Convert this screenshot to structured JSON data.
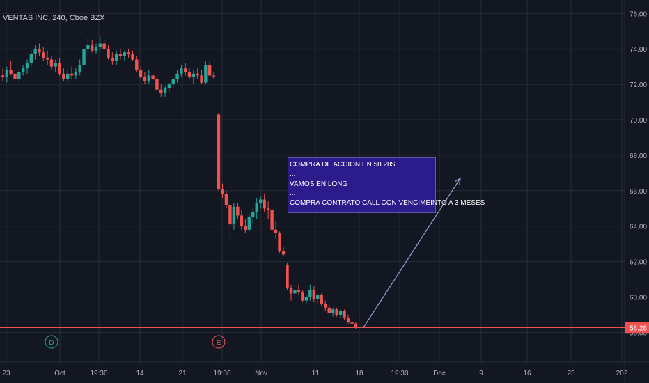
{
  "header": {
    "title": "VENTAS INC, 240, Cboe BZX"
  },
  "annotation": {
    "lines": [
      "COMPRA DE ACCION EN 58.28$",
      "...",
      "VAMOS EN LONG",
      "...",
      "COMPRA CONTRATO  CALL CON VENCIMEINTO A 3 MESES"
    ]
  },
  "colors": {
    "background": "#131722",
    "grid": "#2a2e39",
    "up": "#26a69a",
    "down": "#ef5350",
    "price_line": "#ef5350",
    "arrow": "#9598c8",
    "annotation_bg": "#2c1b8a"
  },
  "chart_data": {
    "type": "candlestick",
    "title": "VENTAS INC, 240, Cboe BZX",
    "ylim": [
      57.4,
      76.8
    ],
    "y_ticks": [
      "58.00",
      "60.00",
      "62.00",
      "64.00",
      "66.00",
      "68.00",
      "70.00",
      "72.00",
      "74.00",
      "76.00"
    ],
    "x_ticks": [
      "23",
      "Oct",
      "19:30",
      "14",
      "21",
      "19:30",
      "Nov",
      "11",
      "18",
      "19:30",
      "Dec",
      "9",
      "16",
      "23",
      "202"
    ],
    "last_price": {
      "value": 58.28,
      "label": "58.28"
    },
    "events": [
      {
        "label": "D",
        "color": "#26a69a"
      },
      {
        "label": "E",
        "color": "#ef5350"
      }
    ],
    "candles": [
      {
        "o": 72.5,
        "h": 72.9,
        "l": 72.2,
        "c": 72.4
      },
      {
        "o": 72.4,
        "h": 73.0,
        "l": 72.1,
        "c": 72.8
      },
      {
        "o": 72.8,
        "h": 73.3,
        "l": 72.5,
        "c": 72.6
      },
      {
        "o": 72.6,
        "h": 72.9,
        "l": 72.2,
        "c": 72.3
      },
      {
        "o": 72.3,
        "h": 72.8,
        "l": 72.1,
        "c": 72.7
      },
      {
        "o": 72.7,
        "h": 73.1,
        "l": 72.5,
        "c": 72.9
      },
      {
        "o": 72.9,
        "h": 73.4,
        "l": 72.6,
        "c": 73.2
      },
      {
        "o": 73.2,
        "h": 73.9,
        "l": 73.0,
        "c": 73.7
      },
      {
        "o": 73.7,
        "h": 74.2,
        "l": 73.4,
        "c": 74.0
      },
      {
        "o": 74.0,
        "h": 74.3,
        "l": 73.6,
        "c": 73.8
      },
      {
        "o": 73.8,
        "h": 74.1,
        "l": 73.3,
        "c": 73.5
      },
      {
        "o": 73.5,
        "h": 73.9,
        "l": 73.1,
        "c": 73.4
      },
      {
        "o": 73.4,
        "h": 73.6,
        "l": 72.8,
        "c": 73.0
      },
      {
        "o": 73.0,
        "h": 73.4,
        "l": 72.7,
        "c": 73.2
      },
      {
        "o": 73.2,
        "h": 73.5,
        "l": 72.5,
        "c": 72.6
      },
      {
        "o": 72.6,
        "h": 72.9,
        "l": 72.2,
        "c": 72.3
      },
      {
        "o": 72.3,
        "h": 72.8,
        "l": 72.1,
        "c": 72.6
      },
      {
        "o": 72.6,
        "h": 73.0,
        "l": 72.3,
        "c": 72.5
      },
      {
        "o": 72.5,
        "h": 72.9,
        "l": 72.3,
        "c": 72.7
      },
      {
        "o": 72.7,
        "h": 73.4,
        "l": 72.5,
        "c": 73.1
      },
      {
        "o": 73.1,
        "h": 74.2,
        "l": 72.9,
        "c": 74.0
      },
      {
        "o": 74.0,
        "h": 74.6,
        "l": 73.6,
        "c": 74.2
      },
      {
        "o": 74.2,
        "h": 74.5,
        "l": 73.8,
        "c": 73.9
      },
      {
        "o": 73.9,
        "h": 74.3,
        "l": 73.7,
        "c": 74.1
      },
      {
        "o": 74.1,
        "h": 74.7,
        "l": 73.9,
        "c": 74.3
      },
      {
        "o": 74.3,
        "h": 74.5,
        "l": 73.9,
        "c": 74.0
      },
      {
        "o": 74.0,
        "h": 74.2,
        "l": 73.4,
        "c": 73.5
      },
      {
        "o": 73.5,
        "h": 73.8,
        "l": 73.1,
        "c": 73.3
      },
      {
        "o": 73.3,
        "h": 73.9,
        "l": 73.1,
        "c": 73.7
      },
      {
        "o": 73.7,
        "h": 74.0,
        "l": 73.4,
        "c": 73.6
      },
      {
        "o": 73.6,
        "h": 73.9,
        "l": 73.3,
        "c": 73.8
      },
      {
        "o": 73.8,
        "h": 74.0,
        "l": 73.5,
        "c": 73.7
      },
      {
        "o": 73.7,
        "h": 73.9,
        "l": 73.3,
        "c": 73.4
      },
      {
        "o": 73.4,
        "h": 73.6,
        "l": 72.7,
        "c": 72.8
      },
      {
        "o": 72.8,
        "h": 73.0,
        "l": 72.3,
        "c": 72.4
      },
      {
        "o": 72.4,
        "h": 72.7,
        "l": 72.0,
        "c": 72.2
      },
      {
        "o": 72.2,
        "h": 72.8,
        "l": 72.0,
        "c": 72.5
      },
      {
        "o": 72.5,
        "h": 72.8,
        "l": 72.2,
        "c": 72.3
      },
      {
        "o": 72.3,
        "h": 72.5,
        "l": 71.6,
        "c": 71.7
      },
      {
        "o": 71.7,
        "h": 72.0,
        "l": 71.3,
        "c": 71.5
      },
      {
        "o": 71.5,
        "h": 71.9,
        "l": 71.3,
        "c": 71.8
      },
      {
        "o": 71.8,
        "h": 72.1,
        "l": 71.6,
        "c": 72.0
      },
      {
        "o": 72.0,
        "h": 72.4,
        "l": 71.8,
        "c": 72.3
      },
      {
        "o": 72.3,
        "h": 72.8,
        "l": 72.1,
        "c": 72.6
      },
      {
        "o": 72.6,
        "h": 73.1,
        "l": 72.4,
        "c": 72.9
      },
      {
        "o": 72.9,
        "h": 73.2,
        "l": 72.5,
        "c": 72.7
      },
      {
        "o": 72.7,
        "h": 72.9,
        "l": 72.3,
        "c": 72.4
      },
      {
        "o": 72.4,
        "h": 72.8,
        "l": 72.0,
        "c": 72.6
      },
      {
        "o": 72.6,
        "h": 72.9,
        "l": 72.3,
        "c": 72.5
      },
      {
        "o": 72.5,
        "h": 72.8,
        "l": 72.0,
        "c": 72.1
      },
      {
        "o": 72.1,
        "h": 73.3,
        "l": 72.0,
        "c": 73.1
      },
      {
        "o": 73.1,
        "h": 73.3,
        "l": 72.4,
        "c": 72.5
      },
      {
        "o": 72.5,
        "h": 72.7,
        "l": 72.3,
        "c": 72.45
      },
      {
        "o": 70.3,
        "h": 70.4,
        "l": 66.0,
        "c": 66.1
      },
      {
        "o": 66.1,
        "h": 66.4,
        "l": 65.6,
        "c": 65.8
      },
      {
        "o": 65.8,
        "h": 66.0,
        "l": 65.0,
        "c": 65.2
      },
      {
        "o": 65.2,
        "h": 65.4,
        "l": 63.1,
        "c": 64.1
      },
      {
        "o": 64.1,
        "h": 65.3,
        "l": 63.8,
        "c": 65.1
      },
      {
        "o": 65.1,
        "h": 65.3,
        "l": 64.4,
        "c": 64.6
      },
      {
        "o": 64.6,
        "h": 64.9,
        "l": 63.8,
        "c": 64.0
      },
      {
        "o": 64.0,
        "h": 64.4,
        "l": 63.6,
        "c": 63.8
      },
      {
        "o": 63.8,
        "h": 64.7,
        "l": 63.6,
        "c": 64.5
      },
      {
        "o": 64.5,
        "h": 65.0,
        "l": 64.1,
        "c": 64.8
      },
      {
        "o": 64.8,
        "h": 65.6,
        "l": 64.4,
        "c": 65.3
      },
      {
        "o": 65.3,
        "h": 65.7,
        "l": 65.0,
        "c": 65.5
      },
      {
        "o": 65.5,
        "h": 65.8,
        "l": 64.8,
        "c": 65.0
      },
      {
        "o": 65.0,
        "h": 65.4,
        "l": 64.4,
        "c": 64.9
      },
      {
        "o": 64.9,
        "h": 65.1,
        "l": 63.6,
        "c": 63.8
      },
      {
        "o": 63.8,
        "h": 64.3,
        "l": 63.3,
        "c": 63.6
      },
      {
        "o": 63.6,
        "h": 63.7,
        "l": 62.5,
        "c": 62.6
      },
      {
        "o": 62.6,
        "h": 62.8,
        "l": 62.3,
        "c": 62.4
      },
      {
        "o": 61.8,
        "h": 61.9,
        "l": 60.4,
        "c": 60.5
      },
      {
        "o": 60.5,
        "h": 60.7,
        "l": 59.8,
        "c": 60.2
      },
      {
        "o": 60.2,
        "h": 60.6,
        "l": 59.9,
        "c": 60.4
      },
      {
        "o": 60.4,
        "h": 60.7,
        "l": 60.1,
        "c": 60.3
      },
      {
        "o": 60.3,
        "h": 60.4,
        "l": 59.7,
        "c": 59.8
      },
      {
        "o": 59.8,
        "h": 60.1,
        "l": 59.6,
        "c": 60.0
      },
      {
        "o": 60.0,
        "h": 60.7,
        "l": 59.8,
        "c": 60.4
      },
      {
        "o": 60.4,
        "h": 60.6,
        "l": 59.7,
        "c": 59.9
      },
      {
        "o": 59.9,
        "h": 60.2,
        "l": 59.6,
        "c": 60.1
      },
      {
        "o": 60.1,
        "h": 60.2,
        "l": 59.5,
        "c": 59.6
      },
      {
        "o": 59.6,
        "h": 59.8,
        "l": 59.2,
        "c": 59.4
      },
      {
        "o": 59.4,
        "h": 59.6,
        "l": 59.0,
        "c": 59.1
      },
      {
        "o": 59.1,
        "h": 59.4,
        "l": 58.9,
        "c": 59.3
      },
      {
        "o": 59.3,
        "h": 59.4,
        "l": 58.9,
        "c": 59.0
      },
      {
        "o": 59.0,
        "h": 59.3,
        "l": 58.8,
        "c": 59.2
      },
      {
        "o": 59.2,
        "h": 59.3,
        "l": 58.7,
        "c": 58.8
      },
      {
        "o": 58.8,
        "h": 59.0,
        "l": 58.5,
        "c": 58.6
      },
      {
        "o": 58.6,
        "h": 58.8,
        "l": 58.4,
        "c": 58.5
      },
      {
        "o": 58.5,
        "h": 58.6,
        "l": 58.2,
        "c": 58.3
      }
    ],
    "arrow": {
      "from": [
        58.28,
        58.28
      ],
      "to": [
        66.7,
        66.7
      ]
    }
  }
}
